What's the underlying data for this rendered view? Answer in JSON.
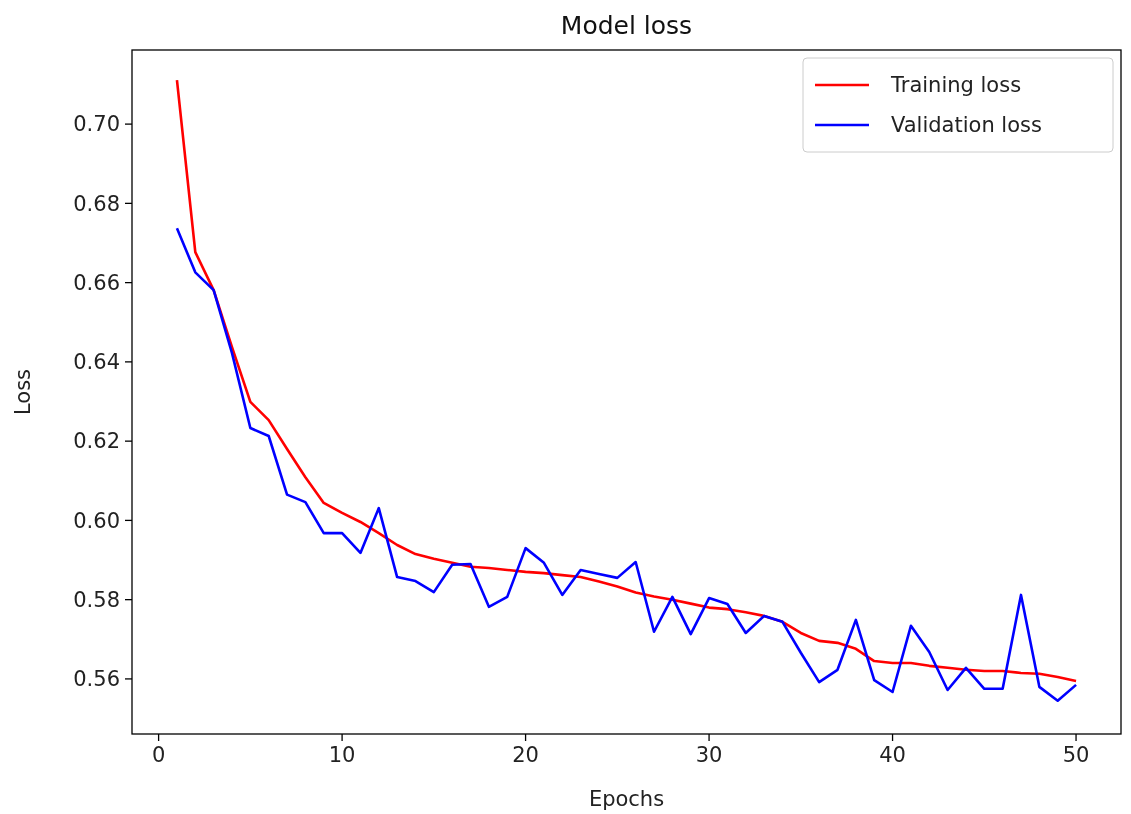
{
  "chart_data": {
    "type": "line",
    "title": "Model loss",
    "xlabel": "Epochs",
    "ylabel": "Loss",
    "x": [
      1,
      2,
      3,
      4,
      5,
      6,
      7,
      8,
      9,
      10,
      11,
      12,
      13,
      14,
      15,
      16,
      17,
      18,
      19,
      20,
      21,
      22,
      23,
      24,
      25,
      26,
      27,
      28,
      29,
      30,
      31,
      32,
      33,
      34,
      35,
      36,
      37,
      38,
      39,
      40,
      41,
      42,
      43,
      44,
      45,
      46,
      47,
      48,
      49,
      50
    ],
    "series": [
      {
        "name": "Training loss",
        "color": "#ff0000",
        "values": [
          0.7111,
          0.6677,
          0.6581,
          0.6437,
          0.6299,
          0.6253,
          0.618,
          0.6109,
          0.6044,
          0.6019,
          0.5996,
          0.5968,
          0.5938,
          0.5915,
          0.5903,
          0.5893,
          0.5883,
          0.588,
          0.5875,
          0.587,
          0.5867,
          0.5862,
          0.5857,
          0.5846,
          0.5833,
          0.5818,
          0.5808,
          0.58,
          0.579,
          0.578,
          0.5776,
          0.5768,
          0.5759,
          0.5744,
          0.5716,
          0.5696,
          0.5691,
          0.5676,
          0.5645,
          0.564,
          0.564,
          0.5633,
          0.5628,
          0.5623,
          0.562,
          0.562,
          0.5615,
          0.5613,
          0.5605,
          0.5595
        ]
      },
      {
        "name": "Validation loss",
        "color": "#0000ff",
        "values": [
          0.6737,
          0.6626,
          0.6581,
          0.6422,
          0.6233,
          0.6213,
          0.6065,
          0.6046,
          0.5968,
          0.5968,
          0.5918,
          0.6031,
          0.5857,
          0.5847,
          0.5819,
          0.5888,
          0.589,
          0.5782,
          0.5807,
          0.593,
          0.5893,
          0.5812,
          0.5875,
          0.5865,
          0.5855,
          0.5895,
          0.5719,
          0.5807,
          0.5713,
          0.5804,
          0.5789,
          0.5716,
          0.5759,
          0.5744,
          0.5666,
          0.5592,
          0.5623,
          0.5749,
          0.5597,
          0.5567,
          0.5734,
          0.5668,
          0.5572,
          0.5628,
          0.5575,
          0.5575,
          0.5812,
          0.558,
          0.5545,
          0.5585
        ]
      }
    ],
    "xlim": [
      -1.45,
      52.45
    ],
    "xticks": [
      0,
      10,
      20,
      30,
      40,
      50
    ],
    "ylim": [
      0.5461,
      0.7187
    ],
    "yticks": [
      {
        "value": 0.56,
        "label": "0.56"
      },
      {
        "value": 0.58,
        "label": "0.58"
      },
      {
        "value": 0.6,
        "label": "0.60"
      },
      {
        "value": 0.62,
        "label": "0.62"
      },
      {
        "value": 0.64,
        "label": "0.64"
      },
      {
        "value": 0.66,
        "label": "0.66"
      },
      {
        "value": 0.68,
        "label": "0.68"
      },
      {
        "value": 0.7,
        "label": "0.70"
      }
    ],
    "legend": "top right",
    "line_style": "solid"
  }
}
